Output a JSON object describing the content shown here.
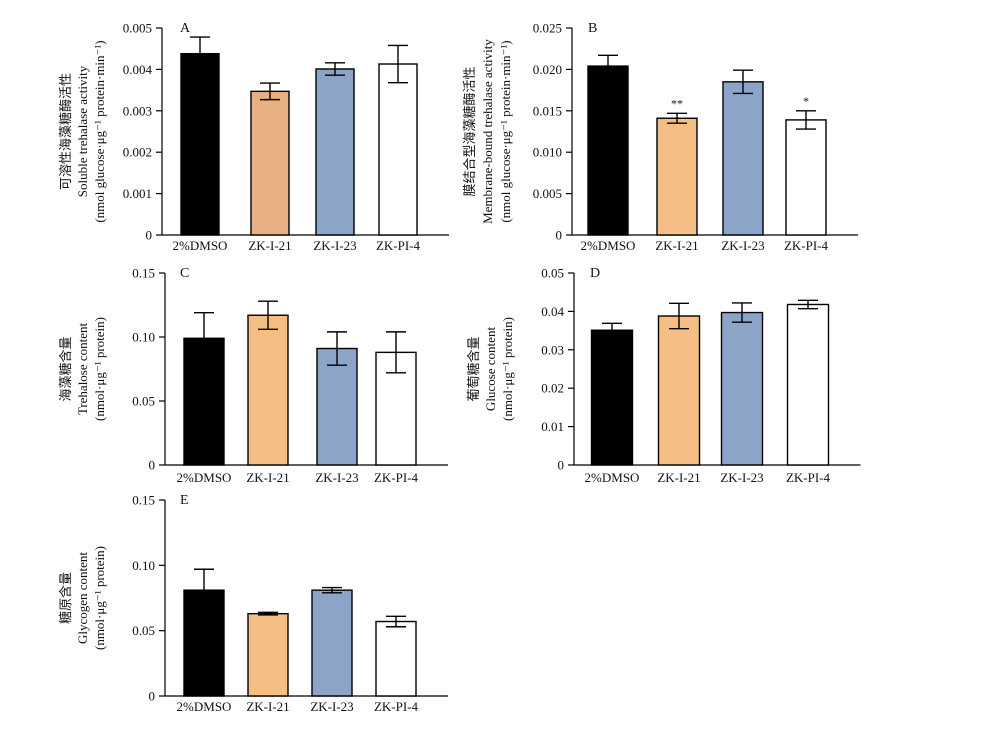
{
  "chart_data": [
    {
      "type": "bar",
      "panel": "A",
      "ylabel": [
        "可溶性海藻糖酶活性",
        "Soluble trehalase activity",
        "(nmol glucose·μg⁻¹ protein·min⁻¹)"
      ],
      "categories": [
        "2%DMSO",
        "ZK-I-21",
        "ZK-I-23",
        "ZK-PI-4"
      ],
      "values": [
        0.00438,
        0.00347,
        0.00401,
        0.00413
      ],
      "errors": [
        0.0004,
        0.0002,
        0.00015,
        0.00045
      ],
      "significance": [
        "",
        "",
        "",
        ""
      ],
      "ylim": [
        0,
        0.005
      ],
      "yticks": [
        "0",
        "0.001",
        "0.002",
        "0.003",
        "0.004",
        "0.005"
      ]
    },
    {
      "type": "bar",
      "panel": "B",
      "ylabel": [
        "膜结合型海藻糖酶活性",
        "Membrane-bound trehalase activity",
        "(nmol glucose·μg⁻¹ protein·min⁻¹)"
      ],
      "categories": [
        "2%DMSO",
        "ZK-I-21",
        "ZK-I-23",
        "ZK-PI-4"
      ],
      "values": [
        0.0204,
        0.0141,
        0.0185,
        0.0139
      ],
      "errors": [
        0.0013,
        0.0006,
        0.0014,
        0.0011
      ],
      "significance": [
        "",
        "**",
        "",
        "*"
      ],
      "ylim": [
        0,
        0.025
      ],
      "yticks": [
        "0",
        "0.005",
        "0.010",
        "0.015",
        "0.020",
        "0.025"
      ]
    },
    {
      "type": "bar",
      "panel": "C",
      "ylabel": [
        "海藻糖含量",
        "Trehalose content",
        "(nmol·μg⁻¹ protein)"
      ],
      "categories": [
        "2%DMSO",
        "ZK-I-21",
        "ZK-I-23",
        "ZK-PI-4"
      ],
      "values": [
        0.099,
        0.117,
        0.091,
        0.088
      ],
      "errors": [
        0.02,
        0.011,
        0.013,
        0.016
      ],
      "significance": [
        "",
        "",
        "",
        ""
      ],
      "ylim": [
        0,
        0.15
      ],
      "yticks": [
        "0",
        "0.05",
        "0.10",
        "0.15"
      ]
    },
    {
      "type": "bar",
      "panel": "D",
      "ylabel": [
        "葡萄糖含量",
        "Glucose content",
        "(nmol·μg⁻¹ protein)"
      ],
      "categories": [
        "2%DMSO",
        "ZK-I-21",
        "ZK-I-23",
        "ZK-PI-4"
      ],
      "values": [
        0.0351,
        0.0388,
        0.0397,
        0.0418
      ],
      "errors": [
        0.0018,
        0.0033,
        0.0025,
        0.0011
      ],
      "significance": [
        "",
        "",
        "",
        ""
      ],
      "ylim": [
        0,
        0.05
      ],
      "yticks": [
        "0",
        "0.01",
        "0.02",
        "0.03",
        "0.04",
        "0.05"
      ]
    },
    {
      "type": "bar",
      "panel": "E",
      "ylabel": [
        "糖原含量",
        "Glycogen content",
        "(nmol·μg⁻¹ protein)"
      ],
      "categories": [
        "2%DMSO",
        "ZK-I-21",
        "ZK-I-23",
        "ZK-PI-4"
      ],
      "values": [
        0.081,
        0.063,
        0.081,
        0.057
      ],
      "errors": [
        0.016,
        0.001,
        0.002,
        0.004
      ],
      "significance": [
        "",
        "",
        "",
        ""
      ],
      "ylim": [
        0,
        0.15
      ],
      "yticks": [
        "0",
        "0.05",
        "0.10",
        "0.15"
      ]
    }
  ],
  "colors": {
    "bar_fills": [
      "#000000",
      "#f5be85",
      "#8ca4c8",
      "#ffffff"
    ],
    "panel_A_bar2_fill": "#e8b184",
    "stroke": "#000000"
  }
}
